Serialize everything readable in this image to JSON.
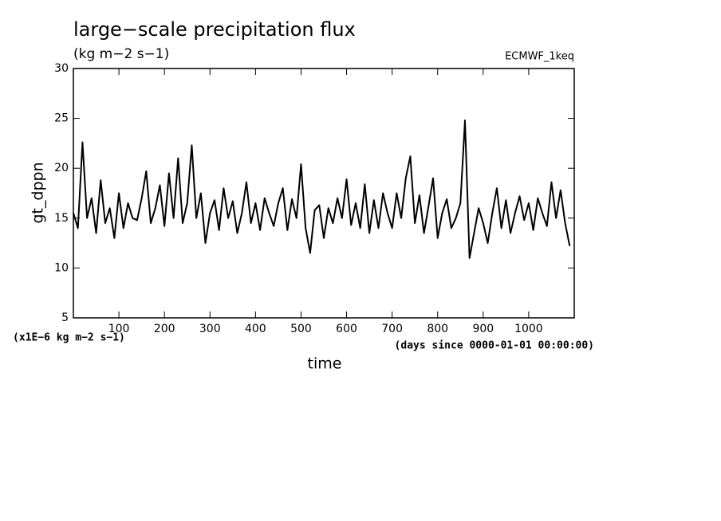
{
  "chart_data": {
    "type": "line",
    "title": "large−scale precipitation flux",
    "subtitle": "(kg m−2 s−1)",
    "annotation": "ECMWF_1keq",
    "ylabel": "gt_dppn",
    "xlabel": "time",
    "y_unit_note": "(x1E−6 kg m−2 s−1)",
    "x_unit_note": "(days since 0000-01-01 00:00:00)",
    "xlim": [
      0,
      1100
    ],
    "ylim": [
      5,
      30
    ],
    "xticks": [
      100,
      200,
      300,
      400,
      500,
      600,
      700,
      800,
      900,
      1000
    ],
    "yticks": [
      5,
      10,
      15,
      20,
      25,
      30
    ],
    "grid": false,
    "x": [
      0,
      10,
      20,
      30,
      40,
      50,
      60,
      70,
      80,
      90,
      100,
      110,
      120,
      130,
      140,
      150,
      160,
      170,
      180,
      190,
      200,
      210,
      220,
      230,
      240,
      250,
      260,
      270,
      280,
      290,
      300,
      310,
      320,
      330,
      340,
      350,
      360,
      370,
      380,
      390,
      400,
      410,
      420,
      430,
      440,
      450,
      460,
      470,
      480,
      490,
      500,
      510,
      520,
      530,
      540,
      550,
      560,
      570,
      580,
      590,
      600,
      610,
      620,
      630,
      640,
      650,
      660,
      670,
      680,
      690,
      700,
      710,
      720,
      730,
      740,
      750,
      760,
      770,
      780,
      790,
      800,
      810,
      820,
      830,
      840,
      850,
      860,
      870,
      880,
      890,
      900,
      910,
      920,
      930,
      940,
      950,
      960,
      970,
      980,
      990,
      1000,
      1010,
      1020,
      1030,
      1040,
      1050,
      1060,
      1070,
      1080,
      1090
    ],
    "series": [
      {
        "name": "gt_dppn",
        "color": "#000000",
        "values": [
          15.5,
          14,
          22.6,
          15,
          17,
          13.5,
          18.8,
          14.5,
          16,
          13,
          17.5,
          14,
          16.5,
          15,
          14.8,
          17,
          19.7,
          14.5,
          16,
          18.3,
          14.2,
          19.5,
          15,
          21,
          14.5,
          16.5,
          22.3,
          15,
          17.5,
          12.5,
          15.5,
          16.8,
          13.8,
          18,
          15,
          16.7,
          13.5,
          15.5,
          18.6,
          14.5,
          16.5,
          13.8,
          17,
          15.5,
          14.2,
          16.5,
          18,
          13.8,
          16.9,
          15,
          20.4,
          14,
          11.5,
          15.8,
          16.3,
          13,
          16,
          14.5,
          17,
          15,
          18.9,
          14.3,
          16.5,
          14,
          18.4,
          13.5,
          16.8,
          14,
          17.5,
          15.5,
          14,
          17.5,
          15,
          19,
          21.2,
          14.5,
          17.3,
          13.5,
          16.2,
          19,
          13,
          15.5,
          16.9,
          14,
          15,
          16.5,
          24.8,
          11,
          13.5,
          16,
          14.5,
          12.5,
          15.5,
          18,
          14,
          16.8,
          13.5,
          15.5,
          17.2,
          14.8,
          16.5,
          13.8,
          17,
          15.5,
          14.2,
          18.6,
          15,
          17.8,
          14.5,
          12.2
        ]
      }
    ]
  }
}
